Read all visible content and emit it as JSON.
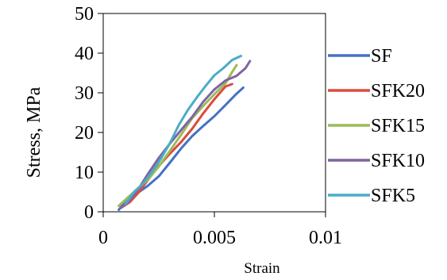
{
  "chart_data": {
    "type": "line",
    "title": "",
    "xlabel": "Strain",
    "ylabel": "Stress, MPa",
    "xlim": [
      0,
      0.01
    ],
    "ylim": [
      0,
      50
    ],
    "x_ticks": [
      0,
      0.005,
      0.01
    ],
    "x_tick_labels": [
      "0",
      "0.005",
      "0.01"
    ],
    "y_ticks": [
      0,
      10,
      20,
      30,
      40,
      50
    ],
    "y_tick_labels": [
      "0",
      "10",
      "20",
      "30",
      "40",
      "50"
    ],
    "grid": false,
    "legend_position": "right",
    "series": [
      {
        "name": "SF",
        "color": "#4472C4",
        "x": [
          0.0007,
          0.001,
          0.0015,
          0.002,
          0.0025,
          0.003,
          0.0035,
          0.004,
          0.0045,
          0.005,
          0.0055,
          0.006,
          0.0063
        ],
        "y": [
          0.5,
          2,
          4.5,
          7,
          9.5,
          12.5,
          15.5,
          18.5,
          21.5,
          24.5,
          27.5,
          30,
          31.3
        ]
      },
      {
        "name": "SFK20",
        "color": "#D94C3D",
        "x": [
          0.0008,
          0.0012,
          0.0016,
          0.002,
          0.0025,
          0.003,
          0.0035,
          0.004,
          0.0045,
          0.005,
          0.0055,
          0.0058
        ],
        "y": [
          1,
          3,
          5,
          7.5,
          11,
          14.5,
          18,
          21.5,
          25,
          28,
          31,
          32.2
        ]
      },
      {
        "name": "SFK15",
        "color": "#9BBB59",
        "x": [
          0.0007,
          0.001,
          0.0015,
          0.002,
          0.0025,
          0.003,
          0.0035,
          0.004,
          0.0045,
          0.005,
          0.0055,
          0.0058,
          0.006
        ],
        "y": [
          1.5,
          2.5,
          5.5,
          8.5,
          12,
          15.5,
          19,
          23,
          26.5,
          30,
          33,
          35.5,
          37
        ]
      },
      {
        "name": "SFK10",
        "color": "#8064A2",
        "x": [
          0.0008,
          0.0012,
          0.0016,
          0.002,
          0.0025,
          0.003,
          0.0035,
          0.004,
          0.0045,
          0.005,
          0.0055,
          0.006,
          0.0064,
          0.0066
        ],
        "y": [
          1,
          3.5,
          6,
          9,
          13,
          17,
          21,
          24.5,
          28,
          30.5,
          32.5,
          34,
          36.5,
          38
        ]
      },
      {
        "name": "SFK5",
        "color": "#4BACC6",
        "x": [
          0.001,
          0.0014,
          0.0018,
          0.0022,
          0.0026,
          0.003,
          0.0034,
          0.0038,
          0.0042,
          0.0046,
          0.005,
          0.0054,
          0.0058,
          0.0062
        ],
        "y": [
          2,
          4.5,
          7,
          10.5,
          14,
          17.5,
          21.5,
          25,
          28.5,
          32,
          35,
          36.5,
          38,
          39.3
        ]
      }
    ]
  }
}
